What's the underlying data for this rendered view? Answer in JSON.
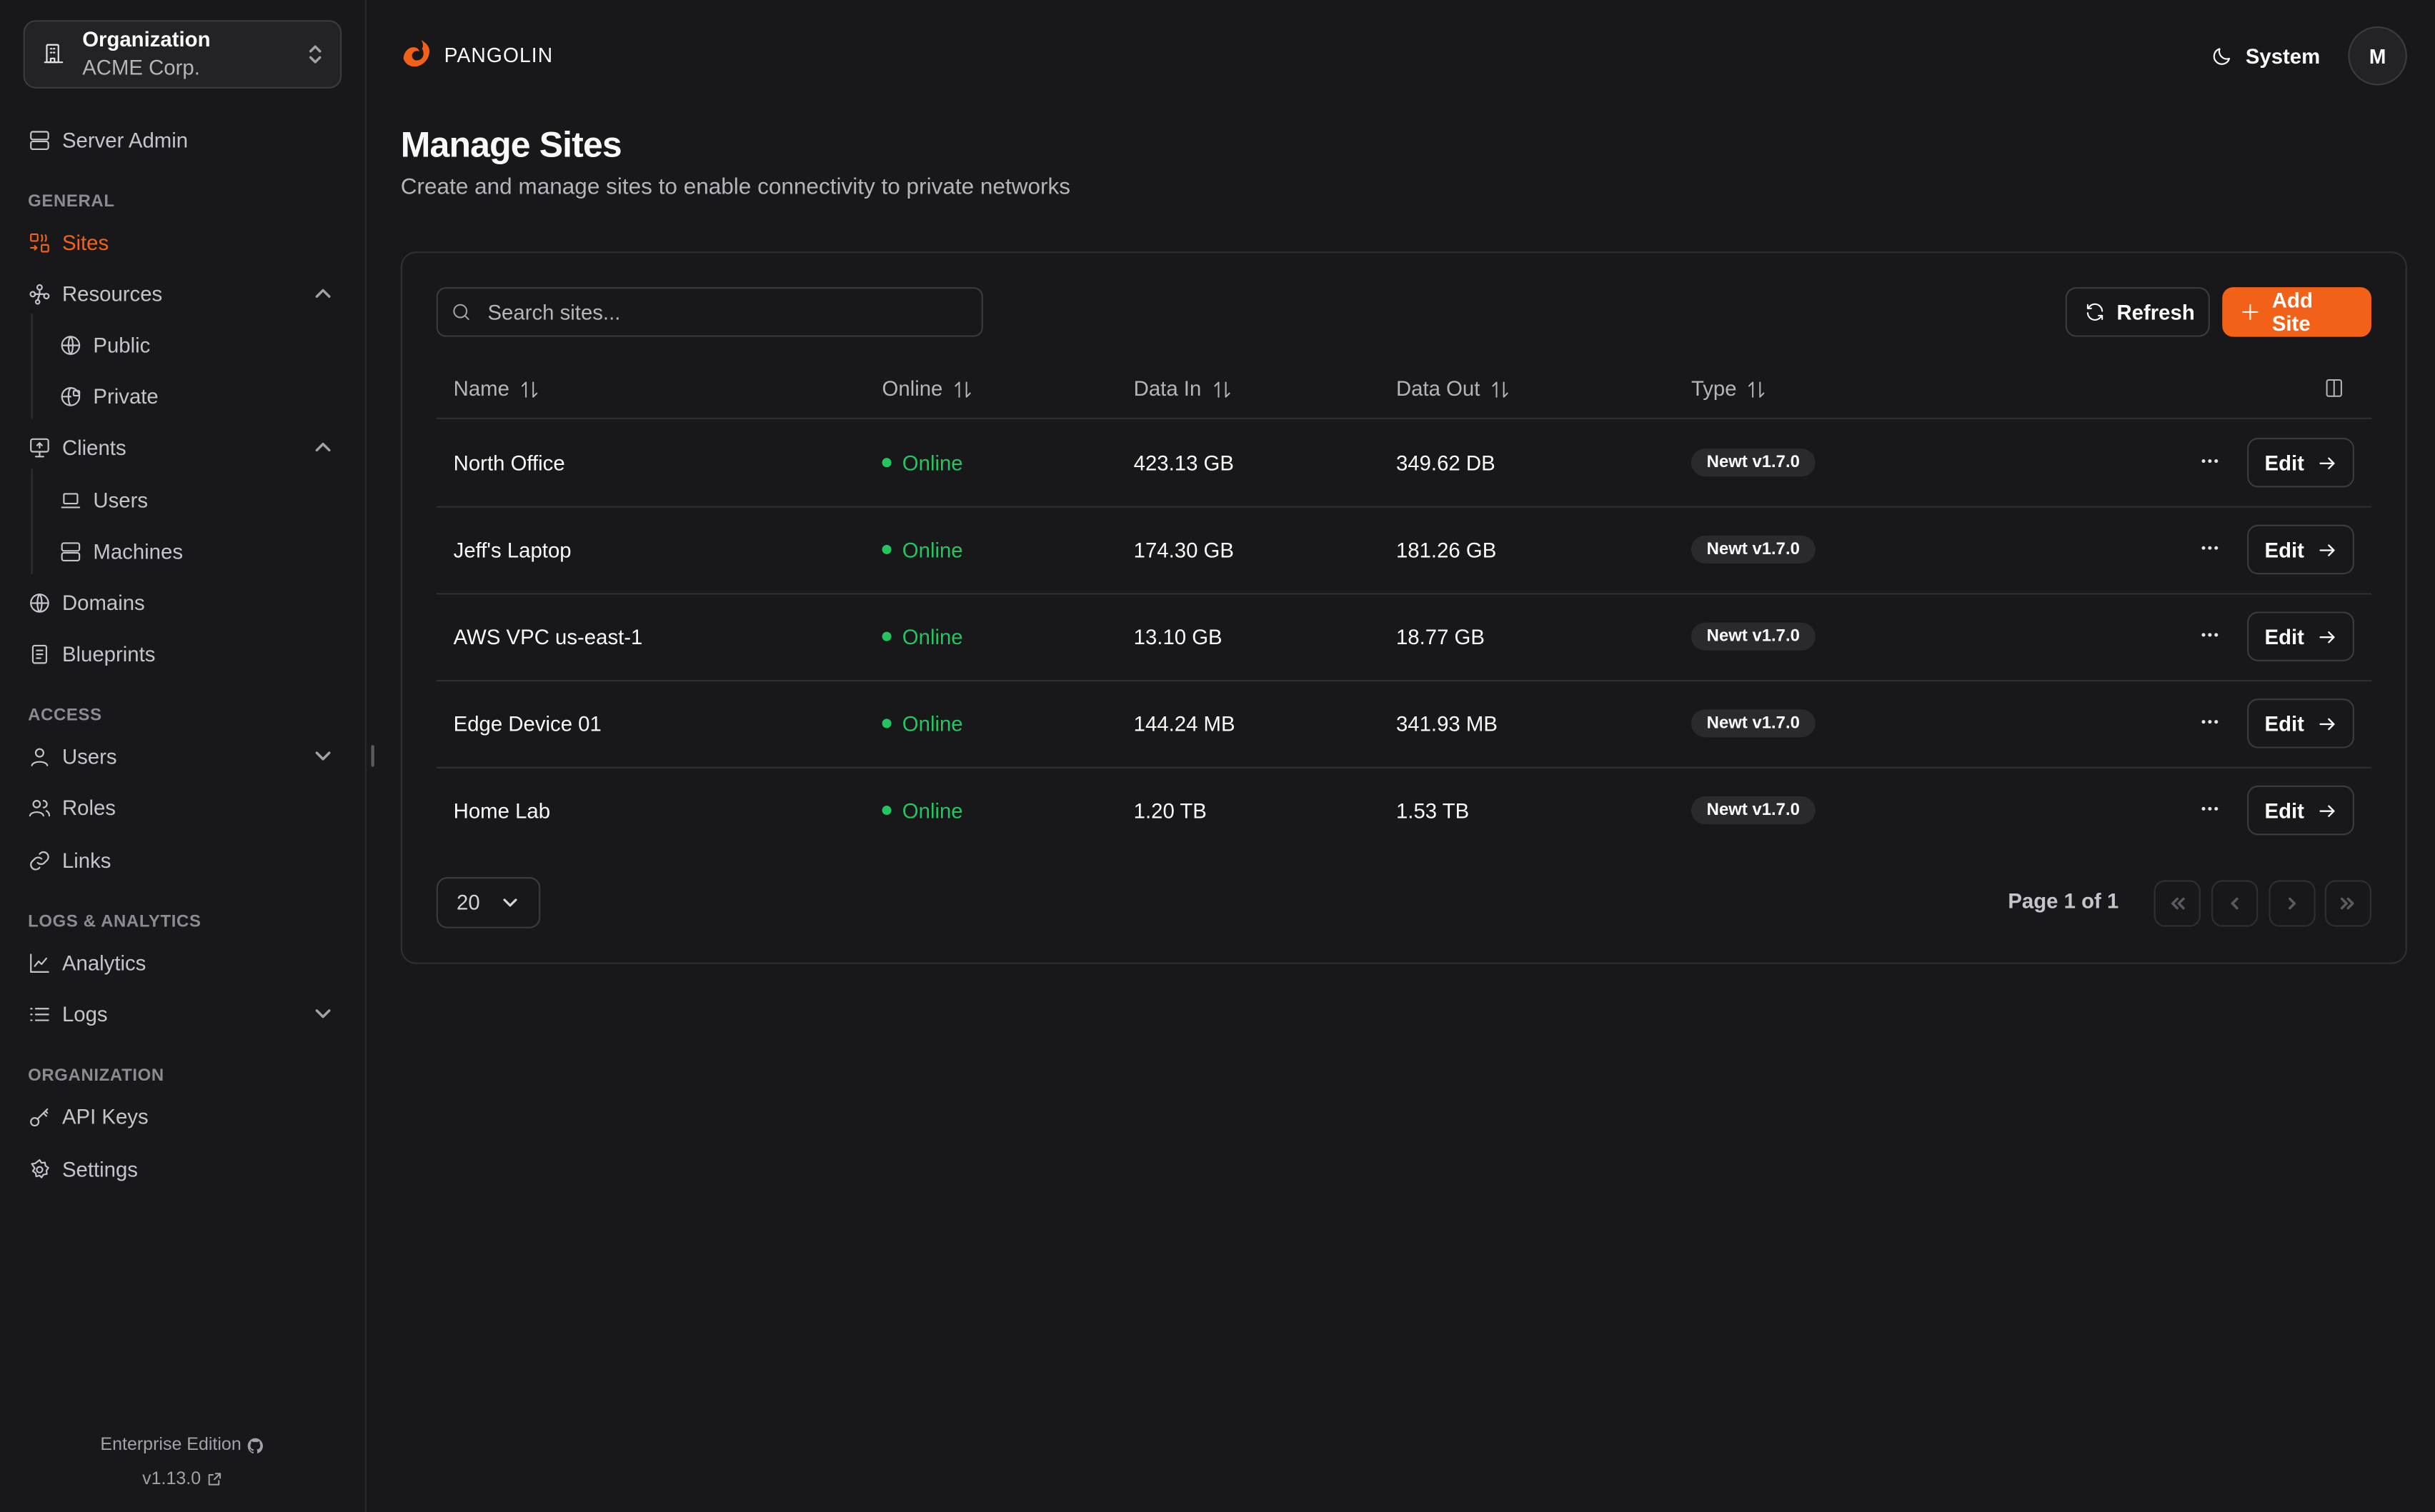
{
  "sidebar": {
    "org_label": "Organization",
    "org_name": "ACME Corp.",
    "server_admin": "Server Admin",
    "sections": {
      "general": "GENERAL",
      "access": "ACCESS",
      "logs": "LOGS & ANALYTICS",
      "organization": "ORGANIZATION"
    },
    "items": {
      "sites": "Sites",
      "resources": "Resources",
      "public": "Public",
      "private": "Private",
      "clients": "Clients",
      "users": "Users",
      "machines": "Machines",
      "domains": "Domains",
      "blueprints": "Blueprints",
      "access_users": "Users",
      "roles": "Roles",
      "links": "Links",
      "analytics": "Analytics",
      "logs": "Logs",
      "api_keys": "API Keys",
      "settings": "Settings"
    },
    "active": "Sites",
    "edition": "Enterprise Edition",
    "version": "v1.13.0"
  },
  "header": {
    "brand": "PANGOLIN",
    "theme": "System",
    "avatar": "M"
  },
  "page": {
    "title": "Manage Sites",
    "subtitle": "Create and manage sites to enable connectivity to private networks"
  },
  "toolbar": {
    "search_placeholder": "Search sites...",
    "refresh": "Refresh",
    "add_site": "Add Site"
  },
  "table": {
    "columns": [
      "Name",
      "Online",
      "Data In",
      "Data Out",
      "Type"
    ],
    "rows": [
      {
        "name": "North Office",
        "status": "Online",
        "data_in": "423.13 GB",
        "data_out": "349.62 DB",
        "type": "Newt v1.7.0",
        "action": "Edit"
      },
      {
        "name": "Jeff's Laptop",
        "status": "Online",
        "data_in": "174.30 GB",
        "data_out": "181.26 GB",
        "type": "Newt v1.7.0",
        "action": "Edit"
      },
      {
        "name": "AWS VPC us-east-1",
        "status": "Online",
        "data_in": "13.10 GB",
        "data_out": "18.77 GB",
        "type": "Newt v1.7.0",
        "action": "Edit"
      },
      {
        "name": "Edge Device 01",
        "status": "Online",
        "data_in": "144.24 MB",
        "data_out": "341.93 MB",
        "type": "Newt v1.7.0",
        "action": "Edit"
      },
      {
        "name": "Home Lab",
        "status": "Online",
        "data_in": "1.20 TB",
        "data_out": "1.53 TB",
        "type": "Newt v1.7.0",
        "action": "Edit"
      }
    ]
  },
  "pagination": {
    "page_size": "20",
    "info": "Page 1 of 1"
  },
  "colors": {
    "accent": "#f36118",
    "online": "#22c55e",
    "background": "#18181b"
  }
}
